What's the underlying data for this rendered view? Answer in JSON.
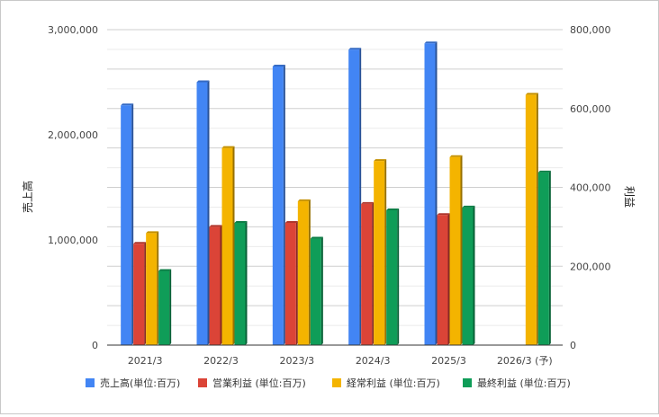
{
  "chart_data": {
    "type": "bar",
    "categories": [
      "2021/3",
      "2022/3",
      "2023/3",
      "2024/3",
      "2025/3",
      "2026/3 (予)"
    ],
    "series": [
      {
        "name": "売上高(単位:百万)",
        "axis": "left",
        "color": "#4285f4",
        "values": [
          2280000,
          2500000,
          2650000,
          2810000,
          2870000,
          null
        ]
      },
      {
        "name": "営業利益 (単位:百万)",
        "axis": "right",
        "color": "#db4437",
        "values": [
          257000,
          300000,
          310000,
          358000,
          330000,
          null
        ]
      },
      {
        "name": "経常利益 (単位:百万)",
        "axis": "right",
        "color": "#f4b400",
        "values": [
          284000,
          500000,
          365000,
          467000,
          477000,
          635000
        ]
      },
      {
        "name": "最終利益 (単位:百万)",
        "axis": "right",
        "color": "#0f9d58",
        "values": [
          188000,
          310000,
          270000,
          342000,
          349000,
          438000
        ]
      }
    ],
    "ylabel_left": "売上高",
    "ylabel_right": "利益",
    "ylim_left": [
      0,
      3000000
    ],
    "ylim_right": [
      0,
      800000
    ],
    "yticks_left": [
      "0",
      "1,000,000",
      "2,000,000",
      "3,000,000"
    ],
    "yticks_right": [
      "0",
      "200,000",
      "400,000",
      "600,000",
      "800,000"
    ],
    "grid": true,
    "legend": "bottom"
  }
}
